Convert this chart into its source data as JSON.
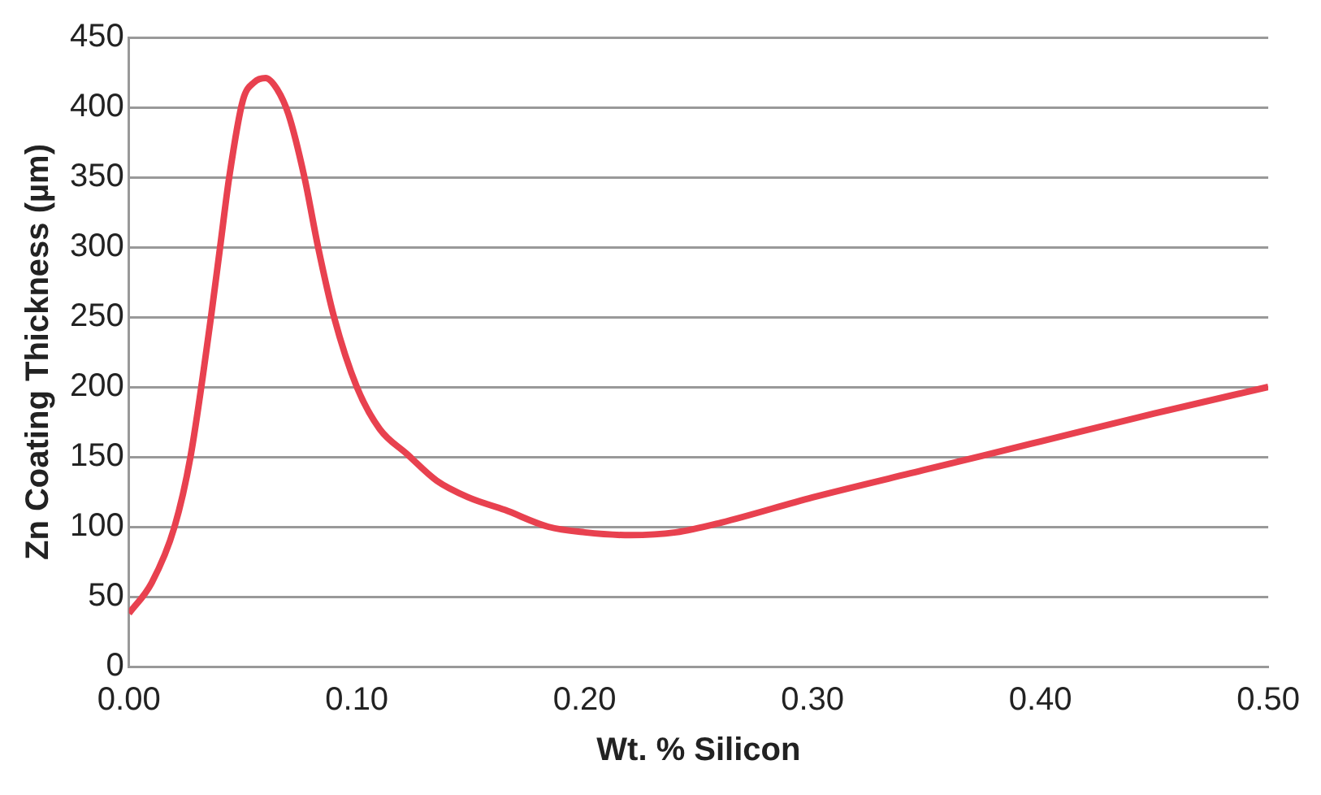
{
  "chart_data": {
    "type": "line",
    "xlabel": "Wt. % Silicon",
    "ylabel": "Zn Coating Thickness (µm)",
    "series": [
      {
        "color": "#e8414f",
        "x": [
          0,
          0.01,
          0.02,
          0.027,
          0.036,
          0.04,
          0.044,
          0.05,
          0.055,
          0.06,
          0.065,
          0.07,
          0.077,
          0.083,
          0.09,
          0.1,
          0.11,
          0.122,
          0.135,
          0.149,
          0.165,
          0.184,
          0.2,
          0.22,
          0.24,
          0.26,
          0.3,
          0.35,
          0.4,
          0.45,
          0.5
        ],
        "values": [
          38,
          60,
          100,
          150,
          250,
          300,
          350,
          405,
          418,
          421,
          413,
          395,
          350,
          300,
          250,
          200,
          170,
          152,
          133,
          121,
          112,
          100,
          96,
          94,
          96,
          103,
          121,
          141,
          161,
          181,
          200
        ]
      }
    ],
    "xlim": [
      0,
      0.5
    ],
    "xticks": [
      {
        "value": 0,
        "label": "0.00"
      },
      {
        "value": 0.1,
        "label": "0.10"
      },
      {
        "value": 0.2,
        "label": "0.20"
      },
      {
        "value": 0.3,
        "label": "0.30"
      },
      {
        "value": 0.4,
        "label": "0.40"
      },
      {
        "value": 0.5,
        "label": "0.50"
      }
    ],
    "ylim": [
      0,
      450
    ],
    "yticks": [
      0,
      50,
      100,
      150,
      200,
      250,
      300,
      350,
      400,
      450
    ],
    "grid": "y",
    "marker": "none",
    "line_style": "solid",
    "legend": false
  }
}
